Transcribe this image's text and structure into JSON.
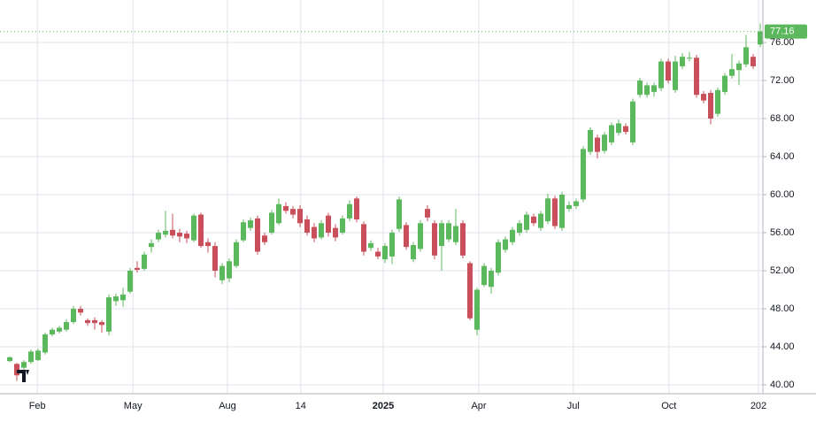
{
  "chart_data": {
    "type": "candlestick",
    "x": [
      0,
      1,
      2,
      3,
      4,
      5,
      6,
      7,
      8,
      9,
      10,
      11,
      12,
      13,
      14,
      15,
      16,
      17,
      18,
      19,
      20,
      21,
      22,
      23,
      24,
      25,
      26,
      27,
      28,
      29,
      30,
      31,
      32,
      33,
      34,
      35,
      36,
      37,
      38,
      39,
      40,
      41,
      42,
      43,
      44,
      45,
      46,
      47,
      48,
      49,
      50,
      51,
      52,
      53,
      54,
      55,
      56,
      57,
      58,
      59,
      60,
      61,
      62,
      63,
      64,
      65,
      66,
      67,
      68,
      69,
      70,
      71,
      72,
      73,
      74,
      75,
      76,
      77,
      78,
      79,
      80,
      81,
      82,
      83,
      84,
      85,
      86,
      87,
      88,
      89,
      90,
      91,
      92,
      93,
      94,
      95,
      96,
      97,
      98,
      99,
      100,
      101,
      102,
      103,
      104,
      105,
      106
    ],
    "open": [
      42.5,
      42.2,
      41.8,
      42.4,
      42.6,
      43.4,
      45.3,
      45.6,
      45.8,
      46.6,
      48.0,
      46.8,
      46.8,
      46.6,
      45.6,
      48.8,
      48.9,
      49.8,
      52.3,
      52.2,
      54.5,
      55.3,
      55.8,
      56.3,
      56.0,
      55.9,
      55.2,
      57.9,
      55.0,
      54.6,
      51.0,
      51.2,
      52.5,
      55.2,
      56.5,
      57.5,
      55.7,
      56.0,
      57.0,
      58.8,
      58.5,
      58.5,
      57.4,
      56.6,
      55.5,
      57.8,
      56.5,
      56.0,
      57.5,
      59.6,
      56.9,
      54.4,
      54.0,
      53.2,
      53.5,
      56.4,
      56.8,
      53.2,
      54.3,
      58.5,
      57.0,
      54.6,
      55.3,
      55.0,
      57.0,
      52.8,
      45.8,
      50.5,
      50.3,
      51.8,
      54.2,
      55.0,
      56.0,
      56.3,
      57.7,
      56.5,
      57.2,
      59.6,
      56.5,
      58.5,
      58.8,
      59.5,
      64.5,
      66.0,
      64.6,
      65.5,
      66.5,
      67.2,
      65.5,
      70.5,
      70.5,
      70.8,
      71.2,
      74.0,
      71.0,
      73.5,
      74.3,
      74.4,
      70.6,
      70.7,
      68.5,
      70.8,
      72.5,
      73.1,
      73.7,
      74.5,
      75.8
    ],
    "high": [
      43.0,
      42.3,
      42.6,
      43.7,
      43.8,
      45.5,
      46.0,
      46.2,
      46.9,
      48.3,
      48.3,
      47.0,
      47.1,
      46.8,
      49.5,
      49.6,
      50.2,
      52.3,
      53.0,
      54.0,
      55.3,
      56.3,
      58.3,
      58.0,
      56.4,
      56.2,
      58.0,
      58.1,
      55.4,
      55.0,
      52.8,
      53.3,
      55.3,
      57.4,
      57.6,
      57.8,
      56.0,
      58.4,
      59.6,
      59.2,
      58.8,
      58.9,
      57.8,
      57.0,
      57.3,
      58.1,
      56.9,
      57.8,
      59.4,
      59.8,
      57.2,
      55.2,
      54.4,
      54.9,
      56.3,
      59.8,
      57.1,
      55.0,
      57.3,
      58.9,
      57.3,
      57.3,
      57.3,
      58.5,
      57.3,
      53.0,
      50.2,
      52.8,
      52.3,
      55.3,
      55.6,
      56.6,
      57.3,
      58.2,
      58.0,
      58.3,
      60.1,
      59.9,
      60.3,
      59.3,
      59.6,
      65.1,
      67.1,
      66.3,
      66.6,
      67.6,
      67.9,
      67.5,
      70.1,
      72.3,
      71.8,
      71.8,
      74.3,
      74.3,
      74.6,
      74.9,
      75.0,
      74.7,
      70.9,
      71.0,
      71.3,
      72.8,
      74.8,
      74.1,
      76.8,
      74.8,
      78.0
    ],
    "low": [
      42.4,
      40.4,
      41.6,
      42.2,
      42.5,
      43.2,
      45.1,
      45.4,
      45.6,
      46.4,
      47.3,
      46.2,
      45.8,
      45.5,
      45.2,
      48.3,
      48.2,
      49.6,
      51.8,
      52.0,
      53.9,
      55.0,
      55.5,
      55.4,
      55.0,
      54.9,
      55.0,
      54.4,
      53.9,
      51.3,
      50.6,
      50.8,
      52.3,
      55.0,
      56.2,
      53.7,
      54.7,
      55.8,
      56.8,
      58.0,
      57.5,
      56.6,
      55.7,
      55.0,
      55.3,
      55.6,
      55.1,
      55.8,
      57.2,
      57.1,
      53.6,
      54.1,
      53.2,
      52.8,
      52.7,
      56.1,
      54.2,
      52.9,
      54.0,
      57.2,
      53.2,
      52.0,
      55.0,
      54.7,
      53.3,
      46.8,
      45.2,
      50.3,
      49.6,
      51.5,
      53.9,
      54.7,
      55.7,
      56.0,
      56.7,
      56.2,
      56.9,
      56.4,
      56.2,
      58.2,
      58.5,
      59.2,
      64.2,
      63.8,
      64.3,
      65.2,
      66.2,
      66.3,
      65.2,
      70.2,
      70.2,
      70.3,
      70.9,
      71.7,
      70.7,
      73.2,
      74.0,
      70.2,
      69.6,
      67.4,
      68.2,
      70.5,
      72.2,
      71.5,
      73.4,
      73.2,
      75.5
    ],
    "close": [
      42.9,
      41.0,
      42.4,
      43.5,
      43.6,
      45.3,
      45.8,
      46.0,
      46.6,
      48.0,
      47.6,
      46.5,
      46.5,
      46.3,
      49.2,
      49.3,
      49.5,
      52.0,
      52.1,
      53.7,
      54.9,
      56.0,
      56.2,
      55.7,
      55.6,
      55.4,
      57.8,
      54.6,
      54.6,
      52.0,
      52.5,
      53.0,
      55.0,
      57.1,
      57.3,
      54.0,
      55.0,
      58.1,
      59.0,
      58.3,
      57.9,
      57.0,
      56.0,
      55.4,
      57.0,
      56.0,
      55.5,
      57.5,
      59.0,
      57.4,
      54.0,
      54.9,
      53.5,
      54.6,
      56.0,
      59.5,
      54.5,
      54.7,
      57.0,
      57.6,
      53.6,
      57.0,
      57.0,
      56.7,
      53.6,
      47.0,
      50.0,
      52.5,
      52.0,
      55.0,
      55.3,
      56.3,
      57.0,
      57.9,
      57.0,
      58.0,
      59.6,
      56.7,
      60.0,
      58.9,
      59.3,
      64.8,
      66.8,
      64.5,
      66.3,
      67.3,
      67.5,
      66.6,
      69.8,
      72.0,
      71.5,
      71.5,
      74.0,
      72.0,
      74.0,
      74.5,
      74.4,
      70.5,
      69.9,
      68.0,
      71.0,
      72.5,
      73.2,
      73.8,
      75.5,
      73.5,
      77.16
    ],
    "up_color": "#5cb85c",
    "down_color": "#c9505a",
    "last_price": 77.16,
    "xlim": [
      -1.375,
      106.375
    ],
    "ylim": [
      39.07,
      80.47
    ],
    "xticks": [
      {
        "value": 3.9,
        "label": "Feb"
      },
      {
        "value": 17.4,
        "label": "May"
      },
      {
        "value": 30.75,
        "label": "Aug"
      },
      {
        "value": 41.1,
        "label": "14"
      },
      {
        "value": 52.75,
        "label": "2025"
      },
      {
        "value": 66.25,
        "label": "Apr"
      },
      {
        "value": 79.6,
        "label": "Jul"
      },
      {
        "value": 93.1,
        "label": "Oct"
      },
      {
        "value": 105.75,
        "label": "202"
      }
    ],
    "yticks": [
      {
        "value": 40,
        "label": "40.00"
      },
      {
        "value": 44,
        "label": "44.00"
      },
      {
        "value": 48,
        "label": "48.00"
      },
      {
        "value": 52,
        "label": "52.00"
      },
      {
        "value": 56,
        "label": "56.00"
      },
      {
        "value": 60,
        "label": "60.00"
      },
      {
        "value": 64,
        "label": "64.00"
      },
      {
        "value": 68,
        "label": "68.00"
      },
      {
        "value": 72,
        "label": "72.00"
      },
      {
        "value": 76,
        "label": "76.00"
      }
    ],
    "grid": true
  }
}
